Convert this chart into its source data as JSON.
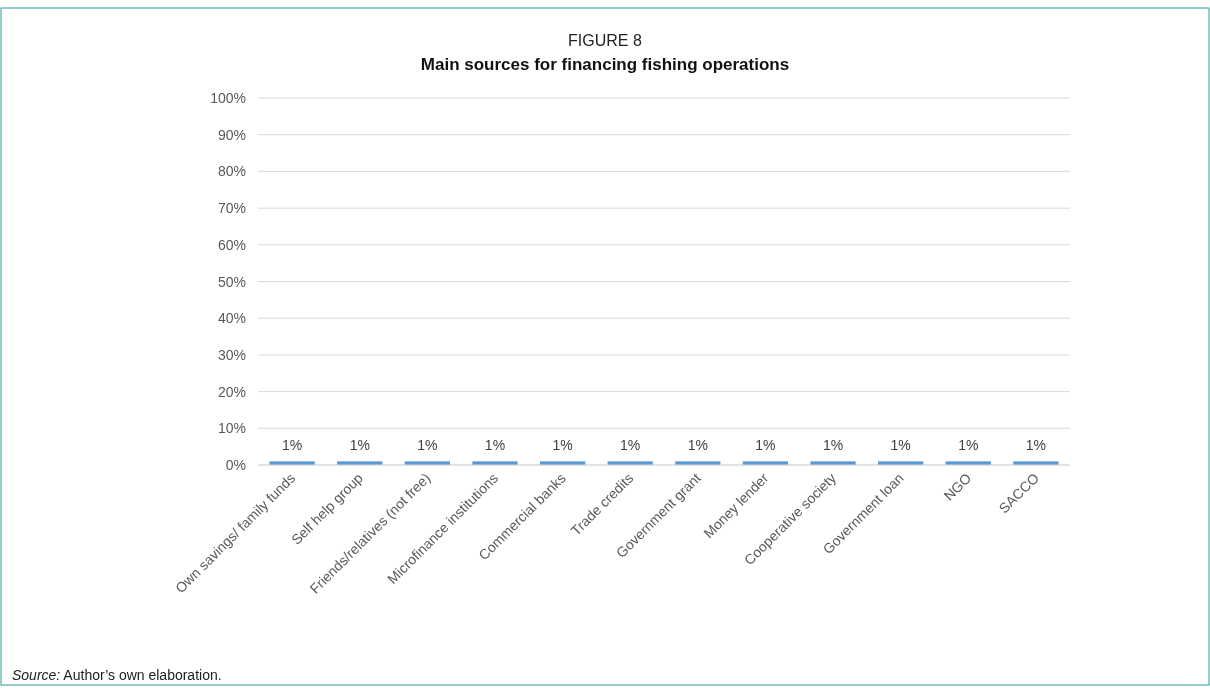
{
  "chart_data": {
    "type": "bar",
    "subtitle": "FIGURE 8",
    "title": "Main sources for financing fishing operations",
    "categories": [
      "Own savings/ family funds",
      "Self help group",
      "Friends/relatives (not free)",
      "Microfinance institutions",
      "Commercial banks",
      "Trade credits",
      "Government grant",
      "Money lender",
      "Cooperative society",
      "Government loan",
      "NGO",
      "SACCO"
    ],
    "values": [
      1,
      1,
      1,
      1,
      1,
      1,
      1,
      1,
      1,
      1,
      1,
      1
    ],
    "value_labels": [
      "1%",
      "1%",
      "1%",
      "1%",
      "1%",
      "1%",
      "1%",
      "1%",
      "1%",
      "1%",
      "1%",
      "1%"
    ],
    "color": "#5b9bd5",
    "ylim": [
      0,
      100
    ],
    "yticks": [
      {
        "value": 0,
        "label": "0%"
      },
      {
        "value": 10,
        "label": "10%"
      },
      {
        "value": 20,
        "label": "20%"
      },
      {
        "value": 30,
        "label": "30%"
      },
      {
        "value": 40,
        "label": "40%"
      },
      {
        "value": 50,
        "label": "50%"
      },
      {
        "value": 60,
        "label": "60%"
      },
      {
        "value": 70,
        "label": "70%"
      },
      {
        "value": 80,
        "label": "80%"
      },
      {
        "value": 90,
        "label": "90%"
      },
      {
        "value": 100,
        "label": "100%"
      }
    ],
    "grid": "y",
    "annotations": [
      "Source: Author’s own elaboration."
    ]
  }
}
